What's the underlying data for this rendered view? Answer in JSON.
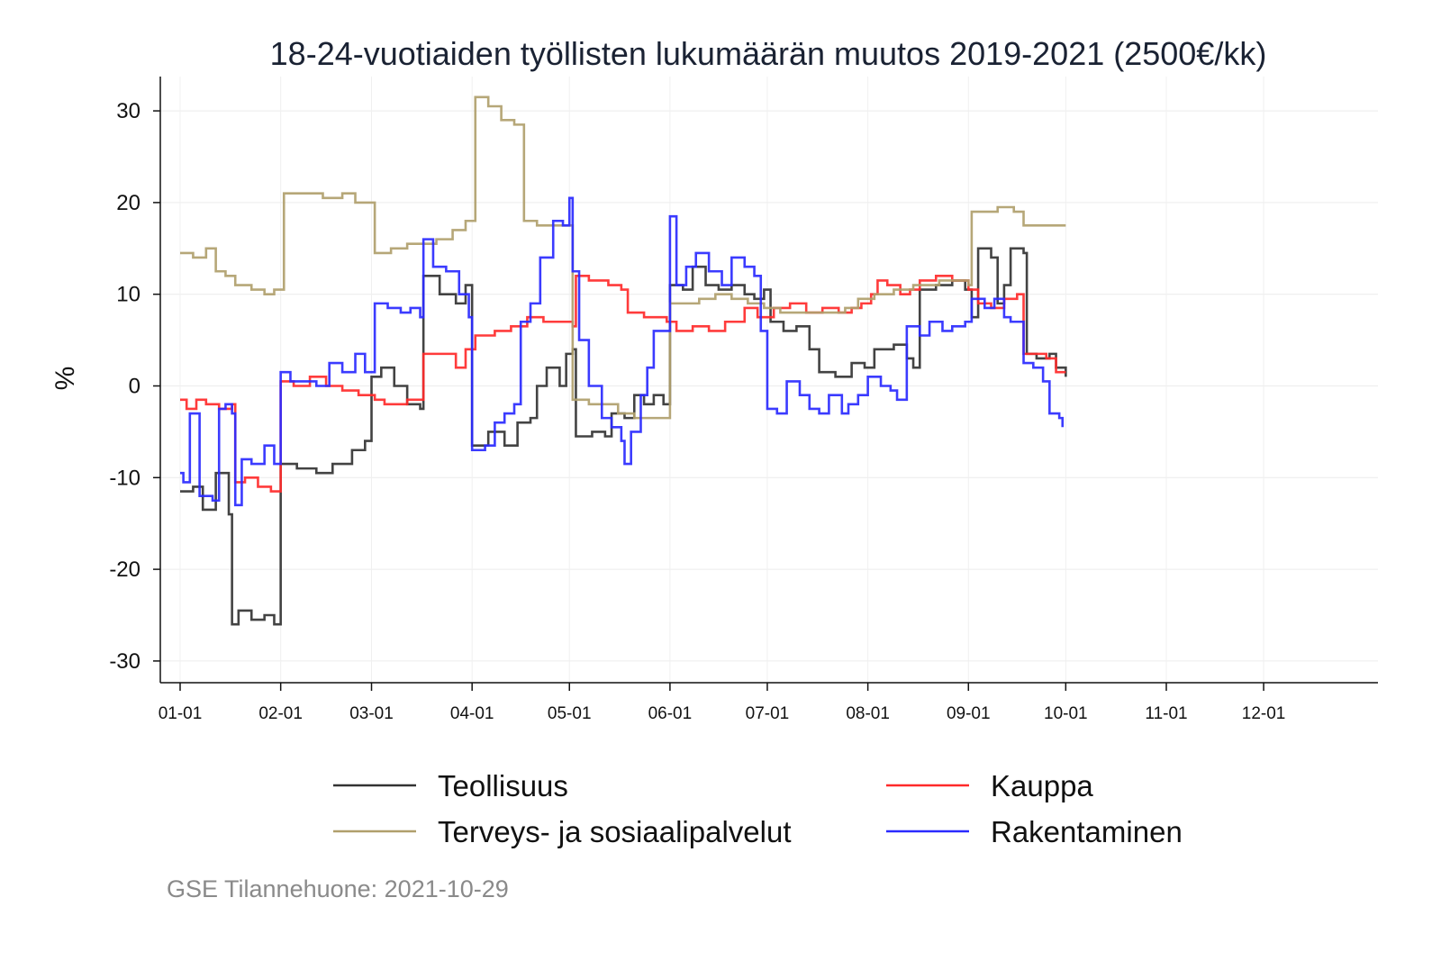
{
  "chart_data": {
    "type": "line",
    "step": true,
    "title": "18-24-vuotiaiden työllisten lukumäärän muutos 2019-2021 (2500€/kk)",
    "xlabel": "",
    "ylabel": "%",
    "x_unit": "day of year (0 = 01-01)",
    "xlim": [
      -6,
      370
    ],
    "ylim": [
      -32,
      34
    ],
    "yticks": [
      30,
      20,
      10,
      0,
      -10,
      -20,
      -30
    ],
    "xticks": [
      {
        "day": 0,
        "label": "01-01"
      },
      {
        "day": 31,
        "label": "02-01"
      },
      {
        "day": 59,
        "label": "03-01"
      },
      {
        "day": 90,
        "label": "04-01"
      },
      {
        "day": 120,
        "label": "05-01"
      },
      {
        "day": 151,
        "label": "06-01"
      },
      {
        "day": 181,
        "label": "07-01"
      },
      {
        "day": 212,
        "label": "08-01"
      },
      {
        "day": 243,
        "label": "09-01"
      },
      {
        "day": 273,
        "label": "10-01"
      },
      {
        "day": 304,
        "label": "11-01"
      },
      {
        "day": 334,
        "label": "12-01"
      }
    ],
    "grid": true,
    "legend_position": "bottom",
    "series": [
      {
        "name": "Teollisuus",
        "color": "#333333",
        "points": [
          [
            0,
            -11.5
          ],
          [
            4,
            -11
          ],
          [
            7,
            -13.5
          ],
          [
            11,
            -9.5
          ],
          [
            15,
            -14
          ],
          [
            16,
            -26
          ],
          [
            18,
            -24.5
          ],
          [
            22,
            -25.5
          ],
          [
            26,
            -25
          ],
          [
            29,
            -26
          ],
          [
            31,
            -8.5
          ],
          [
            36,
            -9
          ],
          [
            42,
            -9.5
          ],
          [
            47,
            -8.5
          ],
          [
            53,
            -7
          ],
          [
            57,
            -6
          ],
          [
            59,
            1
          ],
          [
            62,
            2
          ],
          [
            66,
            0
          ],
          [
            70,
            -2
          ],
          [
            74,
            -2.5
          ],
          [
            75,
            12
          ],
          [
            80,
            10
          ],
          [
            85,
            9
          ],
          [
            88,
            11
          ],
          [
            90,
            -6.5
          ],
          [
            95,
            -5
          ],
          [
            100,
            -6.5
          ],
          [
            104,
            -4
          ],
          [
            108,
            -3.5
          ],
          [
            110,
            0
          ],
          [
            113,
            2
          ],
          [
            117,
            0
          ],
          [
            119,
            3.5
          ],
          [
            121,
            4
          ],
          [
            122,
            -5.5
          ],
          [
            127,
            -5
          ],
          [
            131,
            -5.5
          ],
          [
            133,
            -3
          ],
          [
            137,
            -3.5
          ],
          [
            140,
            -1
          ],
          [
            143,
            -2
          ],
          [
            146,
            -1
          ],
          [
            149,
            -2
          ],
          [
            151,
            11
          ],
          [
            155,
            10.5
          ],
          [
            158,
            13
          ],
          [
            162,
            11
          ],
          [
            166,
            10.5
          ],
          [
            170,
            11
          ],
          [
            174,
            10
          ],
          [
            177,
            9.5
          ],
          [
            180,
            10.5
          ],
          [
            182,
            7
          ],
          [
            186,
            6
          ],
          [
            190,
            6.5
          ],
          [
            194,
            4
          ],
          [
            197,
            1.5
          ],
          [
            202,
            1
          ],
          [
            207,
            2.5
          ],
          [
            211,
            2
          ],
          [
            214,
            4
          ],
          [
            218,
            4
          ],
          [
            220,
            4.5
          ],
          [
            224,
            3
          ],
          [
            226,
            2
          ],
          [
            228,
            10.5
          ],
          [
            233,
            11
          ],
          [
            238,
            11.5
          ],
          [
            242,
            10.5
          ],
          [
            244,
            7.5
          ],
          [
            246,
            15
          ],
          [
            250,
            14
          ],
          [
            252,
            9
          ],
          [
            254,
            11
          ],
          [
            256,
            15
          ],
          [
            260,
            14.5
          ],
          [
            261,
            3.5
          ],
          [
            264,
            3
          ],
          [
            268,
            3.5
          ],
          [
            270,
            2
          ],
          [
            273,
            1
          ]
        ]
      },
      {
        "name": "Kauppa",
        "color": "#ff2a2a",
        "points": [
          [
            0,
            -1.5
          ],
          [
            2,
            -2.5
          ],
          [
            5,
            -1.5
          ],
          [
            8,
            -2
          ],
          [
            12,
            -2.5
          ],
          [
            16,
            -2
          ],
          [
            17,
            -10.5
          ],
          [
            20,
            -10
          ],
          [
            24,
            -11
          ],
          [
            28,
            -11.5
          ],
          [
            31,
            0.5
          ],
          [
            35,
            0
          ],
          [
            40,
            1
          ],
          [
            45,
            0
          ],
          [
            50,
            -0.5
          ],
          [
            55,
            -1
          ],
          [
            60,
            -1.5
          ],
          [
            63,
            -2
          ],
          [
            70,
            -1.5
          ],
          [
            75,
            3.5
          ],
          [
            80,
            3.5
          ],
          [
            85,
            2
          ],
          [
            88,
            4
          ],
          [
            91,
            5.5
          ],
          [
            97,
            6
          ],
          [
            102,
            6.5
          ],
          [
            107,
            7.5
          ],
          [
            112,
            7
          ],
          [
            117,
            7
          ],
          [
            121,
            6.5
          ],
          [
            122,
            12
          ],
          [
            126,
            11.5
          ],
          [
            132,
            11
          ],
          [
            136,
            10.5
          ],
          [
            138,
            8
          ],
          [
            143,
            7.5
          ],
          [
            150,
            7
          ],
          [
            153,
            6
          ],
          [
            158,
            6.5
          ],
          [
            163,
            6
          ],
          [
            168,
            7
          ],
          [
            174,
            8.5
          ],
          [
            178,
            7.5
          ],
          [
            183,
            8.5
          ],
          [
            188,
            9
          ],
          [
            193,
            8
          ],
          [
            198,
            8.5
          ],
          [
            203,
            8
          ],
          [
            207,
            8.5
          ],
          [
            210,
            9
          ],
          [
            213,
            10
          ],
          [
            215,
            11.5
          ],
          [
            218,
            11
          ],
          [
            222,
            10
          ],
          [
            225,
            10.5
          ],
          [
            228,
            11.5
          ],
          [
            233,
            12
          ],
          [
            238,
            11.5
          ],
          [
            243,
            10.5
          ],
          [
            246,
            9
          ],
          [
            250,
            8.5
          ],
          [
            254,
            9.5
          ],
          [
            258,
            10
          ],
          [
            260,
            3.5
          ],
          [
            264,
            3.5
          ],
          [
            267,
            3
          ],
          [
            270,
            1.5
          ],
          [
            273,
            1.5
          ]
        ]
      },
      {
        "name": "Terveys- ja sosiaalipalvelut",
        "color": "#b09f6c",
        "points": [
          [
            0,
            14.5
          ],
          [
            4,
            14
          ],
          [
            8,
            15
          ],
          [
            11,
            12.5
          ],
          [
            14,
            12
          ],
          [
            17,
            11
          ],
          [
            22,
            10.5
          ],
          [
            26,
            10
          ],
          [
            29,
            10.5
          ],
          [
            32,
            21
          ],
          [
            38,
            21
          ],
          [
            44,
            20.5
          ],
          [
            50,
            21
          ],
          [
            54,
            20
          ],
          [
            60,
            14.5
          ],
          [
            65,
            15
          ],
          [
            70,
            15.5
          ],
          [
            75,
            15.5
          ],
          [
            79,
            16
          ],
          [
            84,
            17
          ],
          [
            88,
            18
          ],
          [
            91,
            31.5
          ],
          [
            95,
            30.5
          ],
          [
            99,
            29
          ],
          [
            103,
            28.5
          ],
          [
            106,
            18
          ],
          [
            110,
            17.5
          ],
          [
            115,
            17.5
          ],
          [
            120,
            17.5
          ],
          [
            121,
            -1.5
          ],
          [
            126,
            -2
          ],
          [
            130,
            -2
          ],
          [
            135,
            -3
          ],
          [
            140,
            -3.5
          ],
          [
            145,
            -3.5
          ],
          [
            151,
            9
          ],
          [
            155,
            9
          ],
          [
            160,
            9.5
          ],
          [
            165,
            10
          ],
          [
            170,
            9.5
          ],
          [
            175,
            9
          ],
          [
            180,
            8.5
          ],
          [
            185,
            8
          ],
          [
            190,
            8
          ],
          [
            195,
            8
          ],
          [
            200,
            8
          ],
          [
            205,
            8.5
          ],
          [
            209,
            9.5
          ],
          [
            214,
            10
          ],
          [
            220,
            10.5
          ],
          [
            226,
            11
          ],
          [
            230,
            11
          ],
          [
            234,
            11.5
          ],
          [
            238,
            11.5
          ],
          [
            243,
            11
          ],
          [
            244,
            19
          ],
          [
            248,
            19
          ],
          [
            252,
            19.5
          ],
          [
            257,
            19
          ],
          [
            260,
            17.5
          ],
          [
            266,
            17.5
          ],
          [
            271,
            17.5
          ],
          [
            273,
            17.5
          ]
        ]
      },
      {
        "name": "Rakentaminen",
        "color": "#2a2aff",
        "points": [
          [
            0,
            -9.5
          ],
          [
            1,
            -10.5
          ],
          [
            3,
            -3
          ],
          [
            6,
            -12
          ],
          [
            10,
            -12.5
          ],
          [
            12,
            -2.5
          ],
          [
            14,
            -2
          ],
          [
            16,
            -3
          ],
          [
            17,
            -13
          ],
          [
            19,
            -8
          ],
          [
            22,
            -8.5
          ],
          [
            26,
            -6.5
          ],
          [
            29,
            -8.5
          ],
          [
            31,
            1.5
          ],
          [
            34,
            0.5
          ],
          [
            38,
            0.5
          ],
          [
            42,
            0
          ],
          [
            46,
            2.5
          ],
          [
            50,
            1.5
          ],
          [
            54,
            3.5
          ],
          [
            57,
            1.5
          ],
          [
            60,
            9
          ],
          [
            64,
            8.5
          ],
          [
            68,
            8
          ],
          [
            71,
            8.5
          ],
          [
            74,
            7.5
          ],
          [
            75,
            16
          ],
          [
            78,
            13
          ],
          [
            82,
            12.5
          ],
          [
            86,
            10
          ],
          [
            89,
            7.5
          ],
          [
            90,
            -7
          ],
          [
            94,
            -6.5
          ],
          [
            97,
            -4
          ],
          [
            100,
            -3
          ],
          [
            103,
            -2
          ],
          [
            105,
            7
          ],
          [
            108,
            9
          ],
          [
            111,
            14
          ],
          [
            115,
            18
          ],
          [
            118,
            17.5
          ],
          [
            120,
            20.5
          ],
          [
            121,
            12.5
          ],
          [
            123,
            5
          ],
          [
            126,
            0
          ],
          [
            130,
            -3.5
          ],
          [
            133,
            -4.5
          ],
          [
            136,
            -6
          ],
          [
            137,
            -8.5
          ],
          [
            139,
            -5
          ],
          [
            142,
            -1
          ],
          [
            144,
            2
          ],
          [
            146,
            6
          ],
          [
            151,
            18.5
          ],
          [
            153,
            11
          ],
          [
            156,
            13
          ],
          [
            159,
            14.5
          ],
          [
            163,
            12.5
          ],
          [
            167,
            11
          ],
          [
            170,
            14
          ],
          [
            174,
            13
          ],
          [
            177,
            12
          ],
          [
            179,
            6
          ],
          [
            181,
            -2.5
          ],
          [
            184,
            -3
          ],
          [
            187,
            0.5
          ],
          [
            191,
            -1
          ],
          [
            194,
            -2.5
          ],
          [
            197,
            -3
          ],
          [
            200,
            -1
          ],
          [
            204,
            -3
          ],
          [
            206,
            -2
          ],
          [
            209,
            -1
          ],
          [
            212,
            1
          ],
          [
            216,
            0
          ],
          [
            219,
            -0.5
          ],
          [
            221,
            -1.5
          ],
          [
            224,
            6.5
          ],
          [
            228,
            5.5
          ],
          [
            231,
            7
          ],
          [
            235,
            6
          ],
          [
            238,
            6.5
          ],
          [
            242,
            7
          ],
          [
            244,
            9.5
          ],
          [
            248,
            8.5
          ],
          [
            251,
            9.5
          ],
          [
            254,
            7.5
          ],
          [
            256,
            7
          ],
          [
            260,
            2.5
          ],
          [
            263,
            2
          ],
          [
            266,
            0.5
          ],
          [
            268,
            -3
          ],
          [
            271,
            -3.5
          ],
          [
            272,
            -4.5
          ]
        ]
      }
    ],
    "source_note": "GSE Tilannehuone: 2021-10-29"
  }
}
